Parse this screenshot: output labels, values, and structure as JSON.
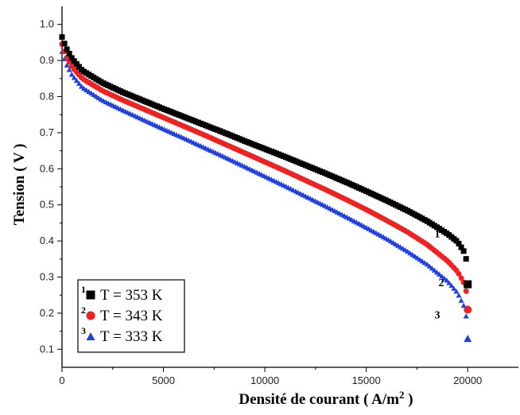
{
  "chart_data": {
    "type": "scatter",
    "xlabel": "Densité de courant ( A/m",
    "xlabel_sup": "2",
    "xlabel_tail": " )",
    "ylabel": "Tension ( V )",
    "xlim": [
      0,
      22500
    ],
    "ylim": [
      0.05,
      1.05
    ],
    "x_ticks": [
      "0",
      "5000",
      "10000",
      "15000",
      "20000"
    ],
    "y_ticks": [
      "0.1",
      "0.2",
      "0.3",
      "0.4",
      "0.5",
      "0.6",
      "0.7",
      "0.8",
      "0.9",
      "1.0"
    ],
    "grid": false,
    "legend_position": "bottom-left",
    "series": [
      {
        "name": "T = 353 K",
        "number": "1",
        "color": "#000000",
        "marker": "square",
        "points": [
          [
            0,
            0.965
          ],
          [
            200,
            0.935
          ],
          [
            500,
            0.905
          ],
          [
            1000,
            0.872
          ],
          [
            2000,
            0.838
          ],
          [
            3000,
            0.812
          ],
          [
            4000,
            0.789
          ],
          [
            5000,
            0.766
          ],
          [
            6000,
            0.744
          ],
          [
            7000,
            0.722
          ],
          [
            8000,
            0.7
          ],
          [
            9000,
            0.677
          ],
          [
            10000,
            0.655
          ],
          [
            11000,
            0.633
          ],
          [
            12000,
            0.61
          ],
          [
            13000,
            0.587
          ],
          [
            14000,
            0.563
          ],
          [
            15000,
            0.538
          ],
          [
            16000,
            0.512
          ],
          [
            17000,
            0.485
          ],
          [
            18000,
            0.455
          ],
          [
            19000,
            0.42
          ],
          [
            19500,
            0.398
          ],
          [
            19800,
            0.372
          ],
          [
            19950,
            0.345
          ],
          [
            20000,
            0.28
          ]
        ]
      },
      {
        "name": "T = 343 K",
        "number": "2",
        "color": "#ee2222",
        "marker": "circle",
        "points": [
          [
            0,
            0.945
          ],
          [
            200,
            0.912
          ],
          [
            500,
            0.882
          ],
          [
            1000,
            0.85
          ],
          [
            2000,
            0.816
          ],
          [
            3000,
            0.79
          ],
          [
            4000,
            0.766
          ],
          [
            5000,
            0.742
          ],
          [
            6000,
            0.718
          ],
          [
            7000,
            0.694
          ],
          [
            8000,
            0.669
          ],
          [
            9000,
            0.644
          ],
          [
            10000,
            0.619
          ],
          [
            11000,
            0.594
          ],
          [
            12000,
            0.568
          ],
          [
            13000,
            0.542
          ],
          [
            14000,
            0.515
          ],
          [
            15000,
            0.487
          ],
          [
            16000,
            0.457
          ],
          [
            17000,
            0.426
          ],
          [
            18000,
            0.39
          ],
          [
            19000,
            0.345
          ],
          [
            19500,
            0.315
          ],
          [
            19800,
            0.285
          ],
          [
            19950,
            0.255
          ],
          [
            20000,
            0.21
          ]
        ]
      },
      {
        "name": "T = 333 K",
        "number": "3",
        "color": "#1f3fe0",
        "marker": "triangle",
        "points": [
          [
            0,
            0.925
          ],
          [
            200,
            0.892
          ],
          [
            500,
            0.86
          ],
          [
            1000,
            0.826
          ],
          [
            2000,
            0.79
          ],
          [
            3000,
            0.763
          ],
          [
            4000,
            0.737
          ],
          [
            5000,
            0.711
          ],
          [
            6000,
            0.686
          ],
          [
            7000,
            0.66
          ],
          [
            8000,
            0.634
          ],
          [
            9000,
            0.607
          ],
          [
            10000,
            0.58
          ],
          [
            11000,
            0.553
          ],
          [
            12000,
            0.525
          ],
          [
            13000,
            0.497
          ],
          [
            14000,
            0.468
          ],
          [
            15000,
            0.438
          ],
          [
            16000,
            0.407
          ],
          [
            17000,
            0.373
          ],
          [
            18000,
            0.336
          ],
          [
            19000,
            0.29
          ],
          [
            19500,
            0.257
          ],
          [
            19800,
            0.222
          ],
          [
            19950,
            0.185
          ],
          [
            20000,
            0.13
          ]
        ]
      }
    ],
    "curve_labels": [
      {
        "text": "1",
        "x": 18500,
        "y": 0.41
      },
      {
        "text": "2",
        "x": 18700,
        "y": 0.275
      },
      {
        "text": "3",
        "x": 18500,
        "y": 0.185
      }
    ]
  }
}
